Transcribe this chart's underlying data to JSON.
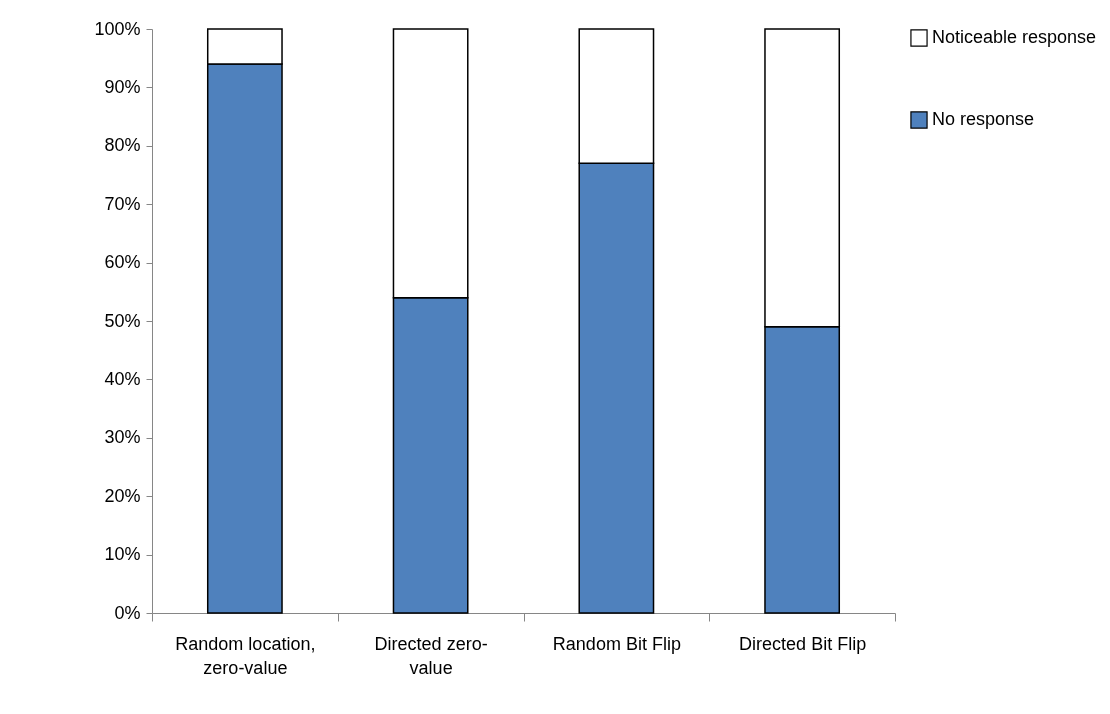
{
  "chart_data": {
    "type": "bar",
    "stacked": true,
    "categories": [
      "Random location, zero-value",
      "Directed zero-value",
      "Random Bit Flip",
      "Directed Bit Flip"
    ],
    "series": [
      {
        "name": "No response",
        "color": "#4f81bd",
        "values": [
          94,
          54,
          77,
          49
        ]
      },
      {
        "name": "Noticeable response",
        "color": "#ffffff",
        "values": [
          6,
          46,
          23,
          51
        ]
      }
    ],
    "ylim": [
      0,
      100
    ],
    "yticks": [
      {
        "value": 0,
        "label": "0%"
      },
      {
        "value": 10,
        "label": "10%"
      },
      {
        "value": 20,
        "label": "20%"
      },
      {
        "value": 30,
        "label": "30%"
      },
      {
        "value": 40,
        "label": "40%"
      },
      {
        "value": 50,
        "label": "50%"
      },
      {
        "value": 60,
        "label": "60%"
      },
      {
        "value": 70,
        "label": "70%"
      },
      {
        "value": 80,
        "label": "80%"
      },
      {
        "value": 90,
        "label": "90%"
      },
      {
        "value": 100,
        "label": "100%"
      }
    ],
    "grid": false,
    "legend": "right"
  }
}
